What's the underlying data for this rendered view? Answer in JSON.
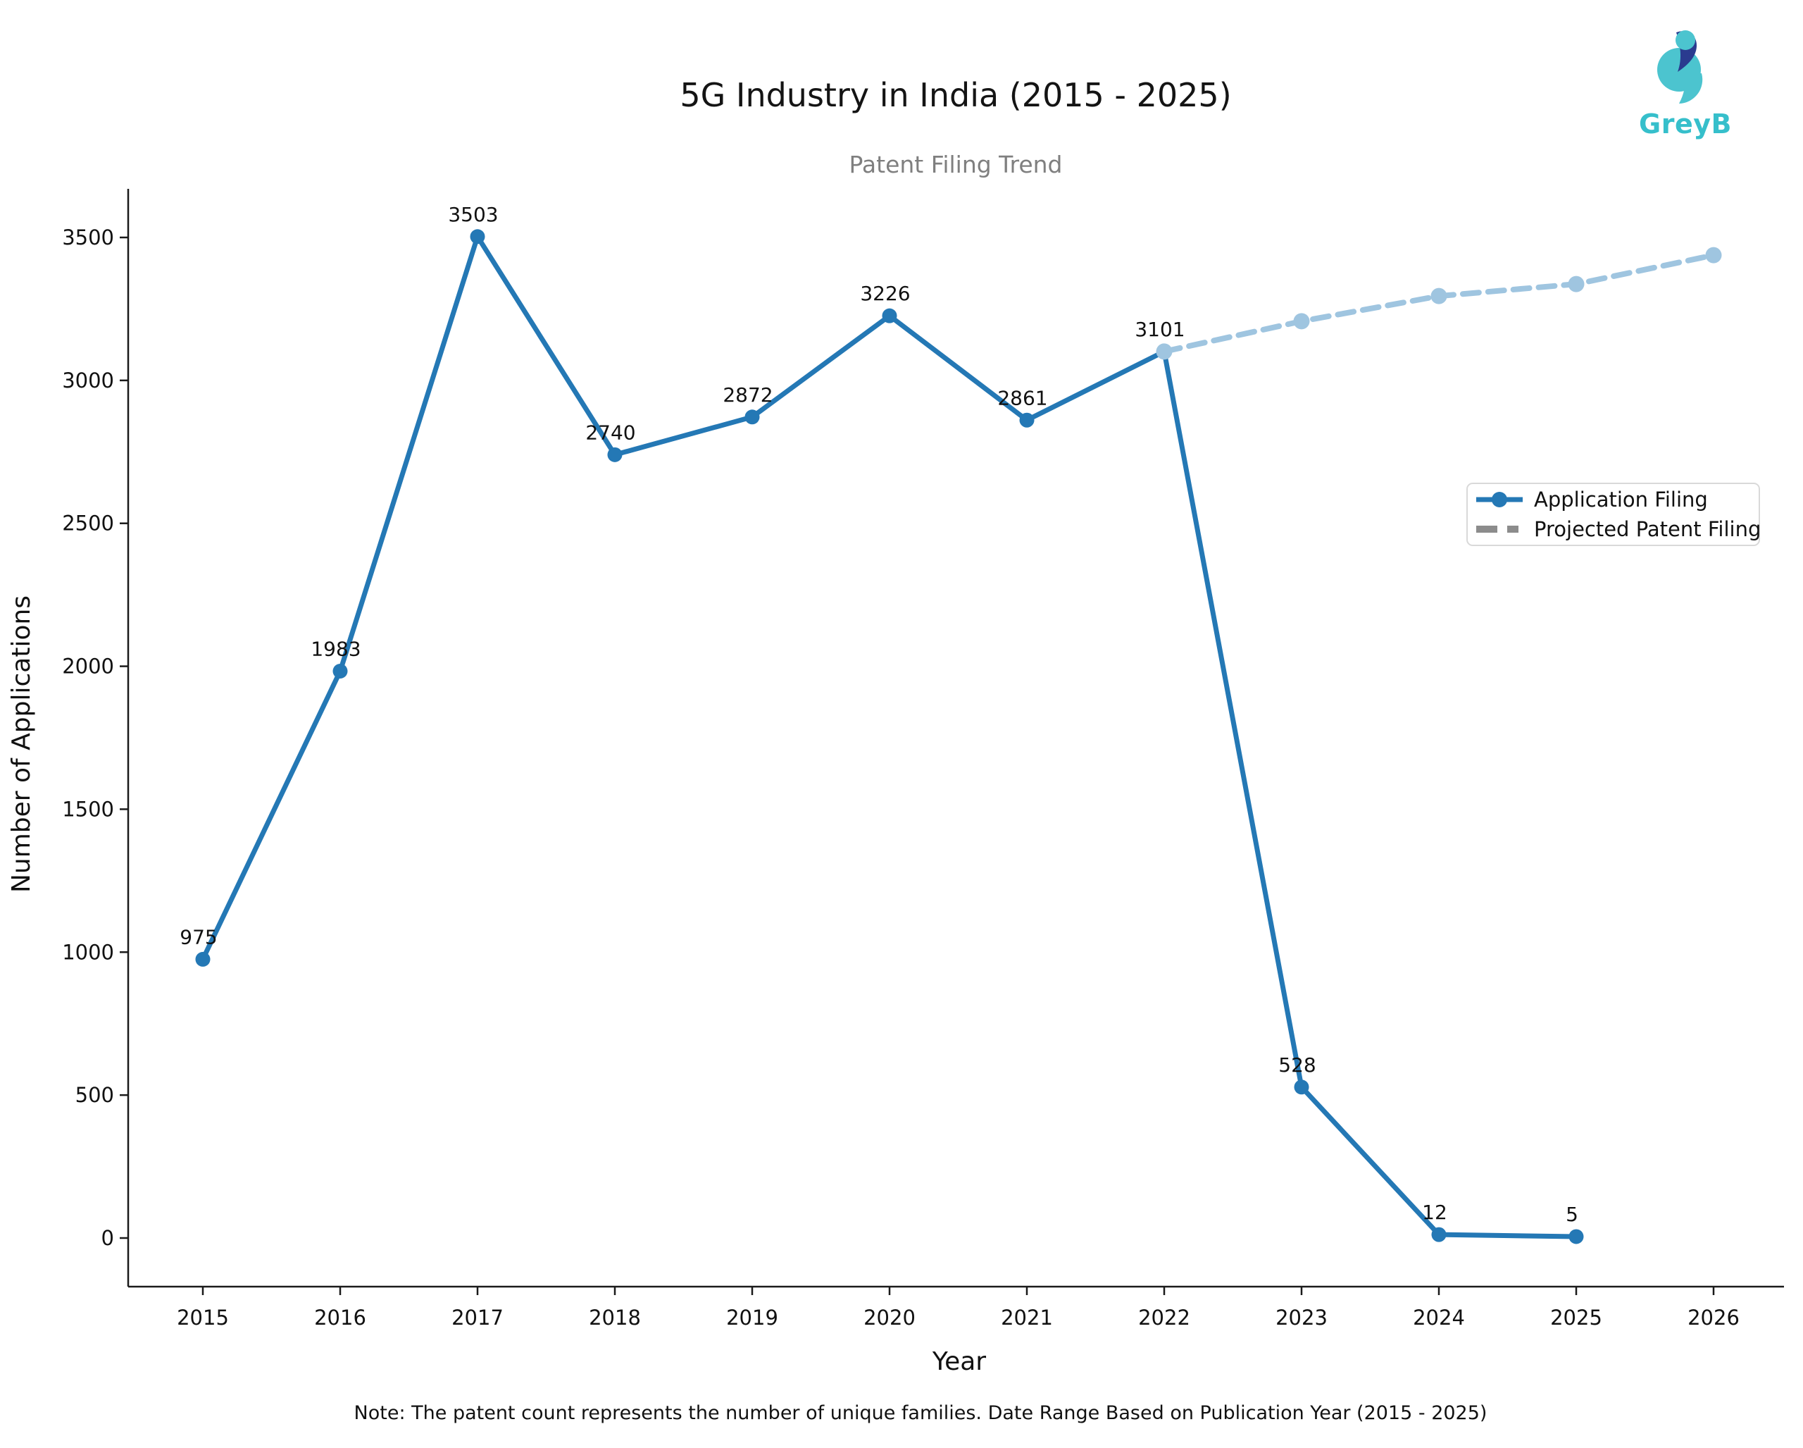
{
  "header": {
    "title": "5G Industry in India (2015 - 2025)",
    "subtitle": "Patent Filing Trend"
  },
  "logo": {
    "text": "GreyB",
    "teal": "#36bfcb",
    "navy": "#2a3b8f"
  },
  "note": "Note: The patent count represents the number of unique families. Date Range Based on Publication Year (2015 - 2025)",
  "chart_data": {
    "type": "line",
    "title": "5G Industry in India (2015 - 2025)",
    "subtitle": "Patent Filing Trend",
    "xlabel": "Year",
    "ylabel": "Number of Applications",
    "x": [
      2015,
      2016,
      2017,
      2018,
      2019,
      2020,
      2021,
      2022,
      2023,
      2024,
      2025,
      2026
    ],
    "ylim": [
      0,
      3500
    ],
    "yticks": [
      0,
      500,
      1000,
      1500,
      2000,
      2500,
      3000,
      3500
    ],
    "grid": false,
    "legend_position": "upper right",
    "series": [
      {
        "name": "Application Filing",
        "style": "solid",
        "color": "#2478b5",
        "marker": "circle",
        "show_value_labels": true,
        "x": [
          2015,
          2016,
          2017,
          2018,
          2019,
          2020,
          2021,
          2022,
          2023,
          2024,
          2025
        ],
        "values": [
          975,
          1983,
          3503,
          2740,
          2872,
          3226,
          2861,
          3101,
          528,
          12,
          5
        ]
      },
      {
        "name": "Projected Patent Filing",
        "style": "dashed",
        "color": "#9fc5e0",
        "legend_color": "#8c8c8c",
        "marker": "circle",
        "show_value_labels": false,
        "x": [
          2022,
          2023,
          2024,
          2025,
          2026
        ],
        "values": [
          3101,
          3207,
          3295,
          3337,
          3438
        ]
      }
    ]
  }
}
